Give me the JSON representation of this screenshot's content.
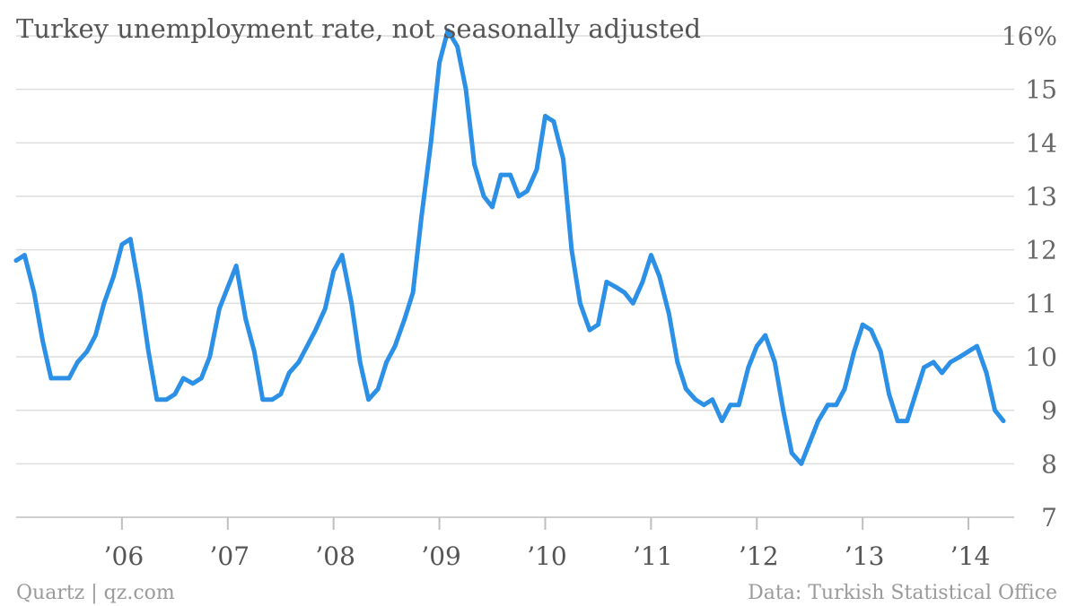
{
  "chart_data": {
    "type": "line",
    "title": "Turkey unemployment rate, not seasonally adjusted",
    "ylim": [
      7,
      16
    ],
    "yticks": [
      7,
      8,
      9,
      10,
      11,
      12,
      13,
      14,
      15,
      16
    ],
    "ytick_labels": [
      "7",
      "8",
      "9",
      "10",
      "11",
      "12",
      "13",
      "14",
      "15",
      "16%"
    ],
    "xlim": [
      2005.0,
      2014.5
    ],
    "xticks": [
      2006,
      2007,
      2008,
      2009,
      2010,
      2011,
      2012,
      2013,
      2014
    ],
    "xtick_labels": [
      "’06",
      "’07",
      "’08",
      "’09",
      "’10",
      "’11",
      "’12",
      "’13",
      "’14"
    ],
    "grid": true,
    "color": "#2b90e6",
    "series": [
      {
        "x": [
          2005.0,
          2005.08,
          2005.17,
          2005.25,
          2005.33,
          2005.42,
          2005.5,
          2005.58,
          2005.67,
          2005.75,
          2005.83,
          2005.92,
          2006.0,
          2006.08,
          2006.17,
          2006.25,
          2006.33,
          2006.42,
          2006.5,
          2006.58,
          2006.67,
          2006.75,
          2006.83,
          2006.92,
          2007.0,
          2007.08,
          2007.17,
          2007.25,
          2007.33,
          2007.42,
          2007.5,
          2007.58,
          2007.67,
          2007.75,
          2007.83,
          2007.92,
          2008.0,
          2008.08,
          2008.17,
          2008.25,
          2008.33,
          2008.42,
          2008.5,
          2008.58,
          2008.67,
          2008.75,
          2008.83,
          2008.92,
          2009.0,
          2009.08,
          2009.17,
          2009.25,
          2009.33,
          2009.42,
          2009.5,
          2009.58,
          2009.67,
          2009.75,
          2009.83,
          2009.92,
          2010.0,
          2010.08,
          2010.17,
          2010.25,
          2010.33,
          2010.42,
          2010.5,
          2010.58,
          2010.67,
          2010.75,
          2010.83,
          2010.92,
          2011.0,
          2011.08,
          2011.17,
          2011.25,
          2011.33,
          2011.42,
          2011.5,
          2011.58,
          2011.67,
          2011.75,
          2011.83,
          2011.92,
          2012.0,
          2012.08,
          2012.17,
          2012.25,
          2012.33,
          2012.42,
          2012.5,
          2012.58,
          2012.67,
          2012.75,
          2012.83,
          2012.92,
          2013.0,
          2013.08,
          2013.17,
          2013.25,
          2013.33,
          2013.42,
          2013.5,
          2013.58,
          2013.67,
          2013.75,
          2013.83,
          2013.92,
          2014.0,
          2014.08,
          2014.17,
          2014.25,
          2014.33
        ],
        "y": [
          11.8,
          11.9,
          11.2,
          10.3,
          9.6,
          9.6,
          9.6,
          9.9,
          10.1,
          10.4,
          11.0,
          11.5,
          12.1,
          12.2,
          11.2,
          10.1,
          9.2,
          9.2,
          9.3,
          9.6,
          9.5,
          9.6,
          10.0,
          10.9,
          11.3,
          11.7,
          10.7,
          10.1,
          9.2,
          9.2,
          9.3,
          9.7,
          9.9,
          10.2,
          10.5,
          10.9,
          11.6,
          11.9,
          11.0,
          9.9,
          9.2,
          9.4,
          9.9,
          10.2,
          10.7,
          11.2,
          12.6,
          14.0,
          15.5,
          16.1,
          15.8,
          15.0,
          13.6,
          13.0,
          12.8,
          13.4,
          13.4,
          13.0,
          13.1,
          13.5,
          14.5,
          14.4,
          13.7,
          12.0,
          11.0,
          10.5,
          10.6,
          11.4,
          11.3,
          11.2,
          11.0,
          11.4,
          11.9,
          11.5,
          10.8,
          9.9,
          9.4,
          9.2,
          9.1,
          9.2,
          8.8,
          9.1,
          9.1,
          9.8,
          10.2,
          10.4,
          9.9,
          9.0,
          8.2,
          8.0,
          8.4,
          8.8,
          9.1,
          9.1,
          9.4,
          10.1,
          10.6,
          10.5,
          10.1,
          9.3,
          8.8,
          8.8,
          9.3,
          9.8,
          9.9,
          9.7,
          9.9,
          10.0,
          10.1,
          10.2,
          9.7,
          9.0,
          8.8
        ]
      }
    ]
  },
  "footer": {
    "source_left": "Quartz | qz.com",
    "source_right": "Data: Turkish Statistical Office"
  }
}
